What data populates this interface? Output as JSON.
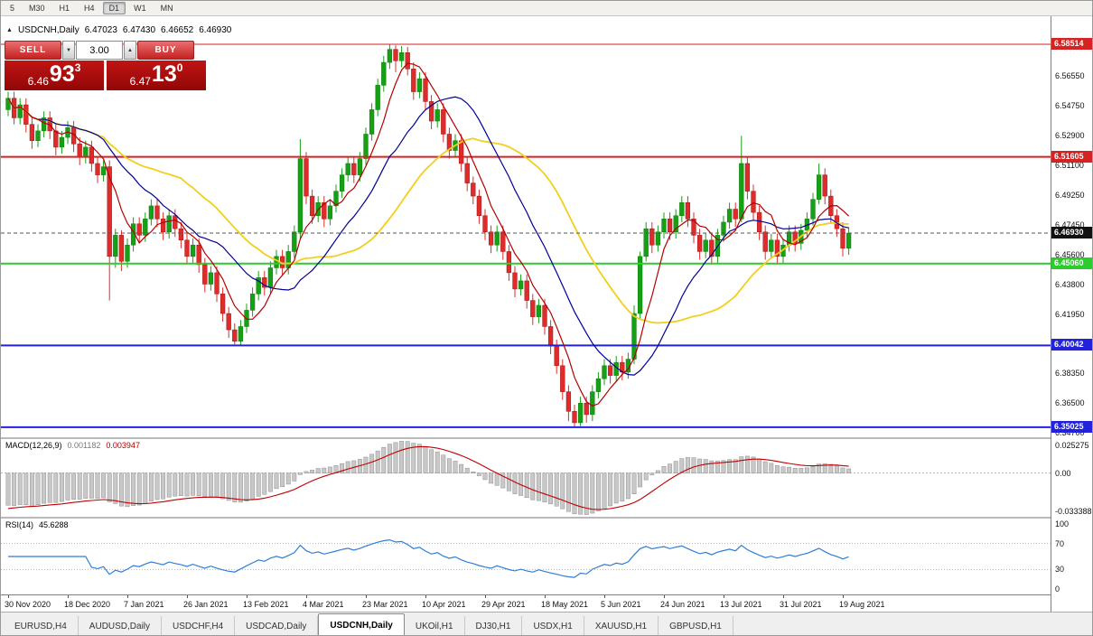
{
  "toolbar": {
    "periods": [
      "5",
      "M30",
      "H1",
      "H4",
      "D1",
      "W1",
      "MN"
    ],
    "active_period": "D1"
  },
  "chart_header": {
    "symbol": "USDCNH,Daily",
    "open": "6.47023",
    "high": "6.47430",
    "low": "6.46652",
    "close": "6.46930"
  },
  "one_click": {
    "sell_label": "SELL",
    "buy_label": "BUY",
    "volume": "3.00",
    "bid_prefix": "6.46",
    "bid_big": "93",
    "bid_sup": "3",
    "ask_prefix": "6.47",
    "ask_big": "13",
    "ask_sup": "0"
  },
  "colors": {
    "up": "#16a016",
    "up_border": "#0c7a0c",
    "down": "#e02b2b",
    "down_border": "#a01515",
    "macd_hist_fill": "#c8c8c8",
    "macd_hist_border": "#8f8f8f",
    "macd_signal": "#c00000",
    "rsi_line": "#2f7ed8",
    "badge_current": "#111111",
    "current_line": "#555555"
  },
  "price_axis": {
    "ticks": [
      "6.56550",
      "6.54750",
      "6.52900",
      "6.51100",
      "6.49250",
      "6.47450",
      "6.45600",
      "6.43800",
      "6.41950",
      "6.38350",
      "6.36500",
      "6.34700"
    ]
  },
  "levels": [
    {
      "price": 6.58514,
      "label": "6.58514",
      "color": "#d52222",
      "width": 1
    },
    {
      "price": 6.51605,
      "label": "6.51605",
      "color": "#d52222",
      "width": 2
    },
    {
      "price": 6.4506,
      "label": "6.45060",
      "color": "#2bcc2b",
      "width": 2
    },
    {
      "price": 6.40042,
      "label": "6.40042",
      "color": "#2222dd",
      "width": 2
    },
    {
      "price": 6.35025,
      "label": "6.35025",
      "color": "#2222dd",
      "width": 2
    }
  ],
  "current_price": {
    "value": 6.4693,
    "label": "6.46930"
  },
  "date_axis": [
    "30 Nov 2020",
    "18 Dec 2020",
    "7 Jan 2021",
    "26 Jan 2021",
    "13 Feb 2021",
    "4 Mar 2021",
    "23 Mar 2021",
    "10 Apr 2021",
    "29 Apr 2021",
    "18 May 2021",
    "5 Jun 2021",
    "24 Jun 2021",
    "13 Jul 2021",
    "31 Jul 2021",
    "19 Aug 2021"
  ],
  "macd": {
    "name": "MACD(12,26,9)",
    "value_main": "0.001182",
    "value_signal": "0.003947",
    "axis_labels": [
      "0.025275",
      "0.00",
      "-0.033388"
    ],
    "fast": 12,
    "slow": 26,
    "signal": 9
  },
  "rsi": {
    "name": "RSI(14)",
    "value": "45.6288",
    "period": 14,
    "axis_labels": [
      "100",
      "70",
      "30",
      "0"
    ],
    "levels": [
      70,
      30
    ]
  },
  "tabs": {
    "items": [
      "EURUSD,H4",
      "AUDUSD,Daily",
      "USDCHF,H4",
      "USDCAD,Daily",
      "USDCNH,Daily",
      "UKOil,H1",
      "DJ30,H1",
      "USDX,H1",
      "XAUUSD,H1",
      "GBPUSD,H1"
    ],
    "active": "USDCNH,Daily"
  },
  "chart_data": {
    "type": "candlestick",
    "symbol": "USDCNH",
    "timeframe": "Daily",
    "title": "USDCNH,Daily",
    "y_range": [
      6.3441,
      6.6023
    ],
    "x_labels": [
      "30 Nov 2020",
      "18 Dec 2020",
      "7 Jan 2021",
      "26 Jan 2021",
      "13 Feb 2021",
      "4 Mar 2021",
      "23 Mar 2021",
      "10 Apr 2021",
      "29 Apr 2021",
      "18 May 2021",
      "5 Jun 2021",
      "24 Jun 2021",
      "13 Jul 2021",
      "31 Jul 2021",
      "19 Aug 2021"
    ],
    "candles_per_label": 10,
    "moving_averages": [
      {
        "name": "ma-fast",
        "period": 6,
        "color": "#b40000",
        "width": 1.2
      },
      {
        "name": "ma-mid",
        "period": 16,
        "color": "#000096",
        "width": 1.2
      },
      {
        "name": "ma-slow",
        "period": 30,
        "color": "#f2cf1c",
        "width": 1.8
      }
    ],
    "candles": [
      [
        6.545,
        6.556,
        6.541,
        6.552
      ],
      [
        6.552,
        6.556,
        6.536,
        6.54
      ],
      [
        6.54,
        6.552,
        6.536,
        6.548
      ],
      [
        6.548,
        6.552,
        6.531,
        6.536
      ],
      [
        6.536,
        6.54,
        6.521,
        6.526
      ],
      [
        6.526,
        6.536,
        6.522,
        6.532
      ],
      [
        6.532,
        6.544,
        6.528,
        6.54
      ],
      [
        6.54,
        6.544,
        6.527,
        6.532
      ],
      [
        6.532,
        6.536,
        6.517,
        6.522
      ],
      [
        6.522,
        6.532,
        6.518,
        6.528
      ],
      [
        6.528,
        6.538,
        6.524,
        6.534
      ],
      [
        6.534,
        6.538,
        6.519,
        6.524
      ],
      [
        6.524,
        6.528,
        6.511,
        6.516
      ],
      [
        6.516,
        6.526,
        6.512,
        6.522
      ],
      [
        6.522,
        6.526,
        6.507,
        6.512
      ],
      [
        6.512,
        6.516,
        6.5,
        6.505
      ],
      [
        6.505,
        6.514,
        6.501,
        6.51
      ],
      [
        6.51,
        6.514,
        6.428,
        6.455
      ],
      [
        6.455,
        6.472,
        6.448,
        6.468
      ],
      [
        6.468,
        6.471,
        6.446,
        6.452
      ],
      [
        6.452,
        6.466,
        6.448,
        6.462
      ],
      [
        6.462,
        6.479,
        6.458,
        6.475
      ],
      [
        6.475,
        6.479,
        6.463,
        6.468
      ],
      [
        6.468,
        6.482,
        6.464,
        6.478
      ],
      [
        6.478,
        6.49,
        6.474,
        6.486
      ],
      [
        6.486,
        6.49,
        6.473,
        6.478
      ],
      [
        6.478,
        6.482,
        6.465,
        6.47
      ],
      [
        6.47,
        6.484,
        6.466,
        6.48
      ],
      [
        6.48,
        6.484,
        6.467,
        6.472
      ],
      [
        6.472,
        6.476,
        6.46,
        6.465
      ],
      [
        6.465,
        6.469,
        6.45,
        6.455
      ],
      [
        6.455,
        6.466,
        6.451,
        6.462
      ],
      [
        6.462,
        6.466,
        6.445,
        6.45
      ],
      [
        6.45,
        6.454,
        6.433,
        6.438
      ],
      [
        6.438,
        6.449,
        6.434,
        6.445
      ],
      [
        6.445,
        6.449,
        6.427,
        6.432
      ],
      [
        6.432,
        6.436,
        6.415,
        6.42
      ],
      [
        6.42,
        6.424,
        6.405,
        6.41
      ],
      [
        6.41,
        6.414,
        6.401,
        6.403
      ],
      [
        6.403,
        6.416,
        6.4,
        6.412
      ],
      [
        6.412,
        6.426,
        6.408,
        6.422
      ],
      [
        6.422,
        6.436,
        6.418,
        6.432
      ],
      [
        6.432,
        6.446,
        6.428,
        6.442
      ],
      [
        6.442,
        6.446,
        6.431,
        6.436
      ],
      [
        6.436,
        6.452,
        6.432,
        6.448
      ],
      [
        6.448,
        6.459,
        6.444,
        6.455
      ],
      [
        6.455,
        6.459,
        6.443,
        6.448
      ],
      [
        6.448,
        6.462,
        6.444,
        6.458
      ],
      [
        6.458,
        6.474,
        6.454,
        6.47
      ],
      [
        6.47,
        6.527,
        6.466,
        6.515
      ],
      [
        6.515,
        6.519,
        6.487,
        6.492
      ],
      [
        6.492,
        6.496,
        6.475,
        6.48
      ],
      [
        6.48,
        6.492,
        6.476,
        6.488
      ],
      [
        6.488,
        6.492,
        6.473,
        6.478
      ],
      [
        6.478,
        6.49,
        6.474,
        6.486
      ],
      [
        6.486,
        6.499,
        6.482,
        6.495
      ],
      [
        6.495,
        6.509,
        6.491,
        6.505
      ],
      [
        6.505,
        6.516,
        6.501,
        6.512
      ],
      [
        6.512,
        6.516,
        6.5,
        6.505
      ],
      [
        6.505,
        6.519,
        6.501,
        6.515
      ],
      [
        6.515,
        6.534,
        6.511,
        6.53
      ],
      [
        6.53,
        6.549,
        6.526,
        6.545
      ],
      [
        6.545,
        6.564,
        6.541,
        6.56
      ],
      [
        6.56,
        6.578,
        6.556,
        6.574
      ],
      [
        6.574,
        6.5851,
        6.57,
        6.582
      ],
      [
        6.582,
        6.5845,
        6.568,
        6.575
      ],
      [
        6.575,
        6.584,
        6.571,
        6.58
      ],
      [
        6.58,
        6.5835,
        6.566,
        6.57
      ],
      [
        6.57,
        6.574,
        6.551,
        6.556
      ],
      [
        6.556,
        6.568,
        6.552,
        6.564
      ],
      [
        6.564,
        6.568,
        6.545,
        6.55
      ],
      [
        6.55,
        6.554,
        6.533,
        6.538
      ],
      [
        6.538,
        6.549,
        6.534,
        6.545
      ],
      [
        6.545,
        6.549,
        6.525,
        6.53
      ],
      [
        6.53,
        6.534,
        6.515,
        6.52
      ],
      [
        6.52,
        6.53,
        6.516,
        6.526
      ],
      [
        6.526,
        6.53,
        6.507,
        6.512
      ],
      [
        6.512,
        6.516,
        6.495,
        6.5
      ],
      [
        6.5,
        6.504,
        6.487,
        6.492
      ],
      [
        6.492,
        6.496,
        6.475,
        6.48
      ],
      [
        6.48,
        6.484,
        6.465,
        6.47
      ],
      [
        6.47,
        6.474,
        6.457,
        6.462
      ],
      [
        6.462,
        6.474,
        6.458,
        6.47
      ],
      [
        6.47,
        6.474,
        6.453,
        6.458
      ],
      [
        6.458,
        6.462,
        6.44,
        6.445
      ],
      [
        6.445,
        6.449,
        6.43,
        6.435
      ],
      [
        6.435,
        6.444,
        6.431,
        6.44
      ],
      [
        6.44,
        6.444,
        6.423,
        6.428
      ],
      [
        6.428,
        6.432,
        6.413,
        6.418
      ],
      [
        6.418,
        6.429,
        6.414,
        6.425
      ],
      [
        6.425,
        6.429,
        6.407,
        6.412
      ],
      [
        6.412,
        6.416,
        6.395,
        6.4
      ],
      [
        6.4,
        6.404,
        6.383,
        6.388
      ],
      [
        6.388,
        6.392,
        6.367,
        6.372
      ],
      [
        6.372,
        6.376,
        6.354,
        6.36
      ],
      [
        6.36,
        6.364,
        6.3505,
        6.353
      ],
      [
        6.353,
        6.369,
        6.351,
        6.365
      ],
      [
        6.365,
        6.369,
        6.353,
        6.358
      ],
      [
        6.358,
        6.376,
        6.354,
        6.372
      ],
      [
        6.372,
        6.384,
        6.368,
        6.38
      ],
      [
        6.38,
        6.392,
        6.376,
        6.388
      ],
      [
        6.388,
        6.392,
        6.377,
        6.382
      ],
      [
        6.382,
        6.394,
        6.378,
        6.39
      ],
      [
        6.39,
        6.394,
        6.379,
        6.384
      ],
      [
        6.384,
        6.396,
        6.38,
        6.392
      ],
      [
        6.392,
        6.425,
        6.389,
        6.42
      ],
      [
        6.42,
        6.458,
        6.417,
        6.455
      ],
      [
        6.455,
        6.476,
        6.452,
        6.472
      ],
      [
        6.472,
        6.476,
        6.457,
        6.462
      ],
      [
        6.462,
        6.474,
        6.458,
        6.47
      ],
      [
        6.47,
        6.482,
        6.466,
        6.478
      ],
      [
        6.478,
        6.482,
        6.465,
        6.47
      ],
      [
        6.47,
        6.484,
        6.466,
        6.48
      ],
      [
        6.48,
        6.492,
        6.476,
        6.488
      ],
      [
        6.488,
        6.492,
        6.473,
        6.478
      ],
      [
        6.478,
        6.482,
        6.463,
        6.468
      ],
      [
        6.468,
        6.472,
        6.453,
        6.458
      ],
      [
        6.458,
        6.469,
        6.454,
        6.465
      ],
      [
        6.465,
        6.469,
        6.45,
        6.455
      ],
      [
        6.455,
        6.472,
        6.451,
        6.468
      ],
      [
        6.468,
        6.48,
        6.464,
        6.476
      ],
      [
        6.476,
        6.488,
        6.472,
        6.484
      ],
      [
        6.484,
        6.488,
        6.473,
        6.478
      ],
      [
        6.478,
        6.529,
        6.476,
        6.512
      ],
      [
        6.512,
        6.516,
        6.49,
        6.495
      ],
      [
        6.495,
        6.499,
        6.477,
        6.482
      ],
      [
        6.482,
        6.486,
        6.465,
        6.47
      ],
      [
        6.47,
        6.474,
        6.453,
        6.458
      ],
      [
        6.458,
        6.469,
        6.454,
        6.465
      ],
      [
        6.465,
        6.469,
        6.45,
        6.455
      ],
      [
        6.455,
        6.466,
        6.451,
        6.462
      ],
      [
        6.462,
        6.474,
        6.458,
        6.47
      ],
      [
        6.47,
        6.474,
        6.458,
        6.463
      ],
      [
        6.463,
        6.475,
        6.459,
        6.471
      ],
      [
        6.471,
        6.482,
        6.467,
        6.478
      ],
      [
        6.478,
        6.494,
        6.474,
        6.49
      ],
      [
        6.49,
        6.512,
        6.487,
        6.505
      ],
      [
        6.505,
        6.509,
        6.487,
        6.492
      ],
      [
        6.492,
        6.496,
        6.475,
        6.48
      ],
      [
        6.48,
        6.484,
        6.467,
        6.472
      ],
      [
        6.472,
        6.476,
        6.455,
        6.46
      ],
      [
        6.46,
        6.473,
        6.456,
        6.4693
      ]
    ]
  }
}
